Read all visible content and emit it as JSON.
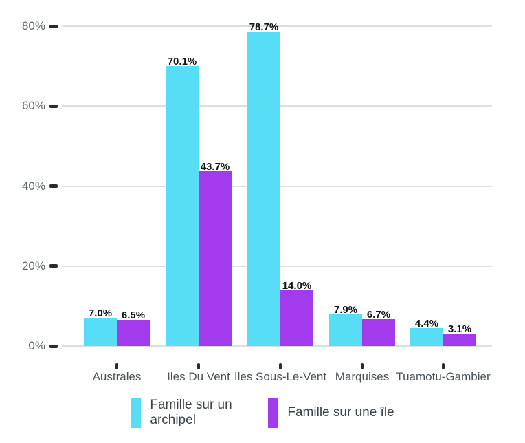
{
  "chart_data": {
    "type": "bar",
    "title": "",
    "categories": [
      "Australes",
      "Iles Du Vent",
      "Iles Sous-Le-Vent",
      "Marquises",
      "Tuamotu-Gambier"
    ],
    "series": [
      {
        "name": "Famille sur un archipel",
        "color": "#58ddf7",
        "values": [
          7.0,
          70.1,
          78.7,
          7.9,
          4.4
        ],
        "value_labels": [
          "7.0%",
          "70.1%",
          "78.7%",
          "7.9%",
          "4.4%"
        ]
      },
      {
        "name": "Famille sur une île",
        "color": "#a13bec",
        "values": [
          6.5,
          43.7,
          14.0,
          6.7,
          3.1
        ],
        "value_labels": [
          "6.5%",
          "43.7%",
          "14.0%",
          "6.7%",
          "3.1%"
        ]
      }
    ],
    "xlabel": "",
    "ylabel": "",
    "y_axis": {
      "tick_values": [
        0,
        20,
        40,
        60,
        80
      ],
      "tick_labels": [
        "0%",
        "20%",
        "40%",
        "60%",
        "80%"
      ],
      "max": 80
    },
    "grid": true,
    "legend_position": "bottom"
  },
  "legend": {
    "items": [
      {
        "label": "Famille sur un archipel",
        "color": "#58ddf7"
      },
      {
        "label": "Famille sur une île",
        "color": "#a13bec"
      }
    ]
  },
  "colors": {
    "background": "#ffffff",
    "gridline": "#d9e0e1",
    "tick": "#272d30",
    "axis_label": "#5c666e",
    "category_label": "#49535a",
    "value_label": "#101417",
    "legend_text": "#3a434c",
    "series_archipel": "#58ddf7",
    "series_ile": "#a13bec"
  }
}
